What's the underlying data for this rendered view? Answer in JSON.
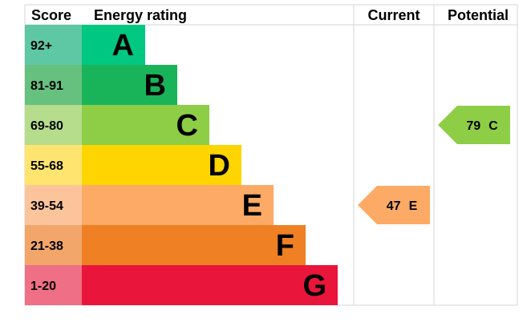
{
  "headers": {
    "score": "Score",
    "rating": "Energy rating",
    "current": "Current",
    "potential": "Potential"
  },
  "chart_data": {
    "type": "bar",
    "categories": [
      "A",
      "B",
      "C",
      "D",
      "E",
      "F",
      "G"
    ],
    "score_ranges": [
      "92+",
      "81-91",
      "69-80",
      "55-68",
      "39-54",
      "21-38",
      "1-20"
    ],
    "band_colors": [
      "#00c781",
      "#19b459",
      "#8dce46",
      "#ffd500",
      "#fcaa65",
      "#ef8023",
      "#e9153b"
    ],
    "score_colors": [
      "#5ec8a5",
      "#66c07e",
      "#b6dd8b",
      "#ffe46f",
      "#fcc49b",
      "#f2a66a",
      "#ef6f86"
    ],
    "current": {
      "value": 47,
      "band": "E",
      "color": "#fcaa65"
    },
    "potential": {
      "value": 79,
      "band": "C",
      "color": "#8dce46"
    }
  }
}
